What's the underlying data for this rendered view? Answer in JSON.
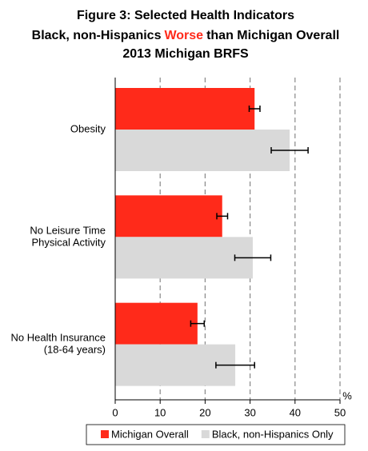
{
  "chart_data": {
    "type": "hbar",
    "title": [
      "Figure 3: Selected Health Indicators",
      [
        "Black, non-Hispanics",
        "Worse",
        "than Michigan Overall"
      ],
      "2013 Michigan BRFS"
    ],
    "title_highlight_color": "#ff2a1a",
    "categories": [
      [
        "Obesity"
      ],
      [
        "No Leisure Time",
        "Physical Activity"
      ],
      [
        "No Health Insurance",
        "(18-64 years)"
      ]
    ],
    "series": [
      {
        "name": "Michigan Overall",
        "color": "#ff2a1a",
        "values": [
          31.0,
          23.8,
          18.3
        ],
        "errors": [
          1.2,
          1.2,
          1.5
        ]
      },
      {
        "name": "Black, non-Hispanics Only",
        "color": "#d9d9d9",
        "values": [
          38.8,
          30.6,
          26.7
        ],
        "errors": [
          4.1,
          4.0,
          4.3
        ]
      }
    ],
    "x_label": "%",
    "xlim": [
      0,
      50
    ],
    "xticks": [
      0,
      10,
      20,
      30,
      40,
      50
    ],
    "grid": true,
    "legend": "bottom"
  }
}
